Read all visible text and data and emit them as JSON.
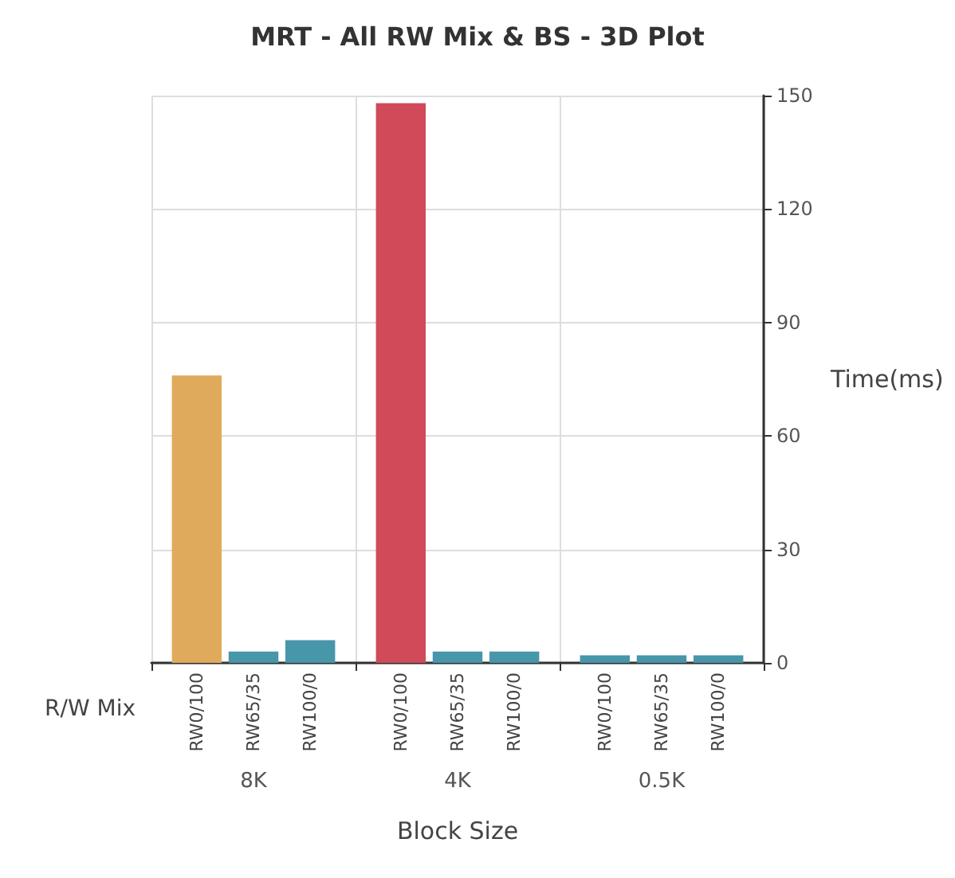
{
  "chart_data": {
    "type": "bar",
    "title": "MRT - All RW Mix & BS - 3D Plot",
    "xlabel": "Block Size",
    "ylabel": "Time(ms)",
    "legend_title": "R/W Mix",
    "categories": [
      "8K",
      "4K",
      "0.5K"
    ],
    "series": [
      {
        "name": "RW0/100",
        "values": [
          76,
          148,
          2
        ],
        "colors": [
          "#e0aa5c",
          "#d04a5a",
          "#4796aa"
        ]
      },
      {
        "name": "RW65/35",
        "values": [
          3,
          3,
          2
        ],
        "colors": [
          "#4796aa",
          "#4796aa",
          "#4796aa"
        ]
      },
      {
        "name": "RW100/0",
        "values": [
          6,
          3,
          2
        ],
        "colors": [
          "#4796aa",
          "#4796aa",
          "#4796aa"
        ]
      }
    ],
    "ylim": [
      0,
      150
    ],
    "yticks": [
      0,
      30,
      60,
      90,
      120,
      150
    ],
    "grid": true
  }
}
